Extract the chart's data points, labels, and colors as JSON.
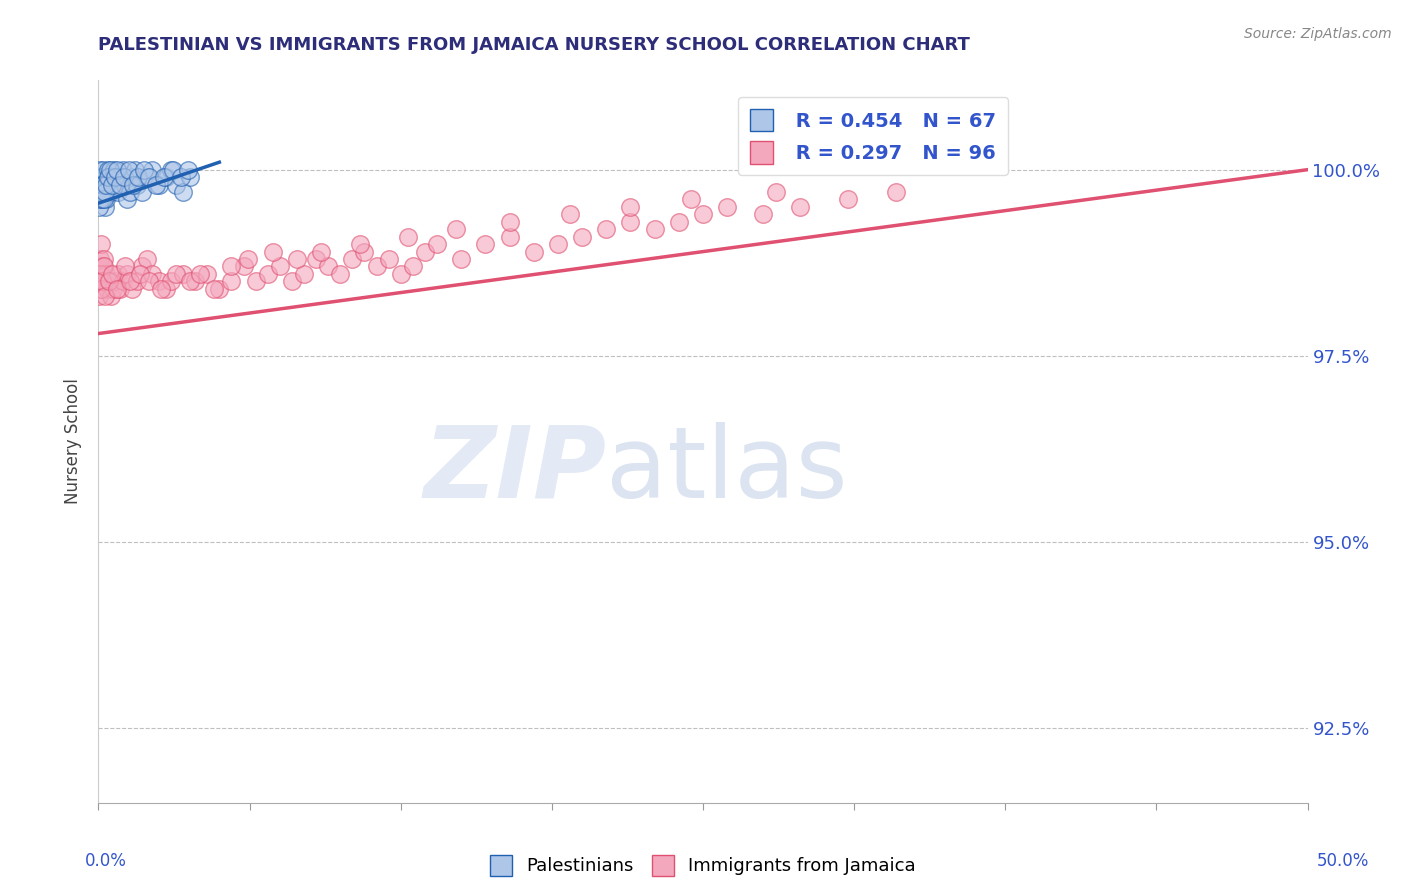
{
  "title": "PALESTINIAN VS IMMIGRANTS FROM JAMAICA NURSERY SCHOOL CORRELATION CHART",
  "source_text": "Source: ZipAtlas.com",
  "ylabel": "Nursery School",
  "yticks": [
    92.5,
    95.0,
    97.5,
    100.0
  ],
  "ytick_labels": [
    "92.5%",
    "95.0%",
    "97.5%",
    "100.0%"
  ],
  "xmin": 0.0,
  "xmax": 50.0,
  "ymin": 91.5,
  "ymax": 101.2,
  "blue_R": 0.454,
  "blue_N": 67,
  "pink_R": 0.297,
  "pink_N": 96,
  "blue_color": "#aec6e8",
  "pink_color": "#f4a8be",
  "blue_line_color": "#2060b0",
  "pink_line_color": "#e05070",
  "legend_label_blue": "Palestinians",
  "legend_label_pink": "Immigrants from Jamaica",
  "watermark_zip": "ZIP",
  "watermark_atlas": "atlas",
  "title_color": "#2d2d7a",
  "axis_label_color": "#3355cc",
  "grid_color": "#b0b0b0",
  "blue_scatter_x": [
    0.02,
    0.03,
    0.05,
    0.07,
    0.08,
    0.1,
    0.12,
    0.15,
    0.18,
    0.2,
    0.22,
    0.25,
    0.28,
    0.3,
    0.35,
    0.4,
    0.45,
    0.5,
    0.55,
    0.6,
    0.65,
    0.7,
    0.8,
    0.9,
    1.0,
    1.1,
    1.2,
    1.3,
    1.4,
    1.5,
    1.6,
    1.8,
    2.0,
    2.2,
    2.5,
    2.8,
    3.0,
    3.2,
    3.5,
    3.8,
    0.04,
    0.06,
    0.09,
    0.11,
    0.13,
    0.16,
    0.19,
    0.23,
    0.27,
    0.32,
    0.38,
    0.48,
    0.58,
    0.68,
    0.78,
    0.88,
    1.05,
    1.25,
    1.45,
    1.65,
    1.9,
    2.1,
    2.4,
    2.7,
    3.1,
    3.4,
    3.7
  ],
  "blue_scatter_y": [
    99.6,
    99.8,
    99.7,
    99.9,
    100.0,
    99.8,
    99.7,
    99.9,
    99.6,
    100.0,
    99.8,
    99.7,
    99.5,
    99.6,
    99.8,
    100.0,
    99.9,
    99.7,
    99.8,
    99.9,
    100.0,
    99.8,
    99.7,
    99.9,
    100.0,
    99.8,
    99.6,
    99.7,
    99.9,
    100.0,
    99.8,
    99.7,
    99.9,
    100.0,
    99.8,
    99.9,
    100.0,
    99.8,
    99.7,
    99.9,
    99.5,
    99.6,
    99.7,
    99.8,
    99.6,
    99.7,
    99.8,
    99.6,
    99.7,
    99.8,
    99.9,
    100.0,
    99.8,
    99.9,
    100.0,
    99.8,
    99.9,
    100.0,
    99.8,
    99.9,
    100.0,
    99.9,
    99.8,
    99.9,
    100.0,
    99.9,
    100.0
  ],
  "pink_scatter_x": [
    0.02,
    0.04,
    0.06,
    0.08,
    0.1,
    0.12,
    0.15,
    0.18,
    0.2,
    0.25,
    0.3,
    0.35,
    0.4,
    0.5,
    0.6,
    0.7,
    0.8,
    0.9,
    1.0,
    1.2,
    1.4,
    1.6,
    1.8,
    2.0,
    2.2,
    2.5,
    2.8,
    3.0,
    3.5,
    4.0,
    4.5,
    5.0,
    5.5,
    6.0,
    6.5,
    7.0,
    7.5,
    8.0,
    8.5,
    9.0,
    9.5,
    10.0,
    10.5,
    11.0,
    11.5,
    12.0,
    12.5,
    13.0,
    13.5,
    14.0,
    15.0,
    16.0,
    17.0,
    18.0,
    19.0,
    20.0,
    21.0,
    22.0,
    23.0,
    24.0,
    25.0,
    26.0,
    27.5,
    29.0,
    31.0,
    33.0,
    0.05,
    0.09,
    0.14,
    0.22,
    0.28,
    0.42,
    0.55,
    0.75,
    1.1,
    1.3,
    1.7,
    2.1,
    2.6,
    3.2,
    3.8,
    4.2,
    4.8,
    5.5,
    6.2,
    7.2,
    8.2,
    9.2,
    10.8,
    12.8,
    14.8,
    17.0,
    19.5,
    22.0,
    24.5,
    28.0
  ],
  "pink_scatter_y": [
    98.5,
    98.3,
    98.7,
    98.8,
    99.0,
    98.6,
    98.4,
    98.7,
    98.5,
    98.8,
    98.6,
    98.4,
    98.5,
    98.3,
    98.4,
    98.5,
    98.6,
    98.4,
    98.5,
    98.6,
    98.4,
    98.5,
    98.7,
    98.8,
    98.6,
    98.5,
    98.4,
    98.5,
    98.6,
    98.5,
    98.6,
    98.4,
    98.5,
    98.7,
    98.5,
    98.6,
    98.7,
    98.5,
    98.6,
    98.8,
    98.7,
    98.6,
    98.8,
    98.9,
    98.7,
    98.8,
    98.6,
    98.7,
    98.9,
    99.0,
    98.8,
    99.0,
    99.1,
    98.9,
    99.0,
    99.1,
    99.2,
    99.3,
    99.2,
    99.3,
    99.4,
    99.5,
    99.4,
    99.5,
    99.6,
    99.7,
    98.6,
    98.4,
    98.5,
    98.7,
    98.3,
    98.5,
    98.6,
    98.4,
    98.7,
    98.5,
    98.6,
    98.5,
    98.4,
    98.6,
    98.5,
    98.6,
    98.4,
    98.7,
    98.8,
    98.9,
    98.8,
    98.9,
    99.0,
    99.1,
    99.2,
    99.3,
    99.4,
    99.5,
    99.6,
    99.7
  ],
  "blue_trend_x": [
    0.0,
    5.0
  ],
  "blue_trend_y": [
    99.55,
    100.1
  ],
  "pink_trend_x": [
    0.0,
    50.0
  ],
  "pink_trend_y": [
    97.8,
    100.0
  ]
}
